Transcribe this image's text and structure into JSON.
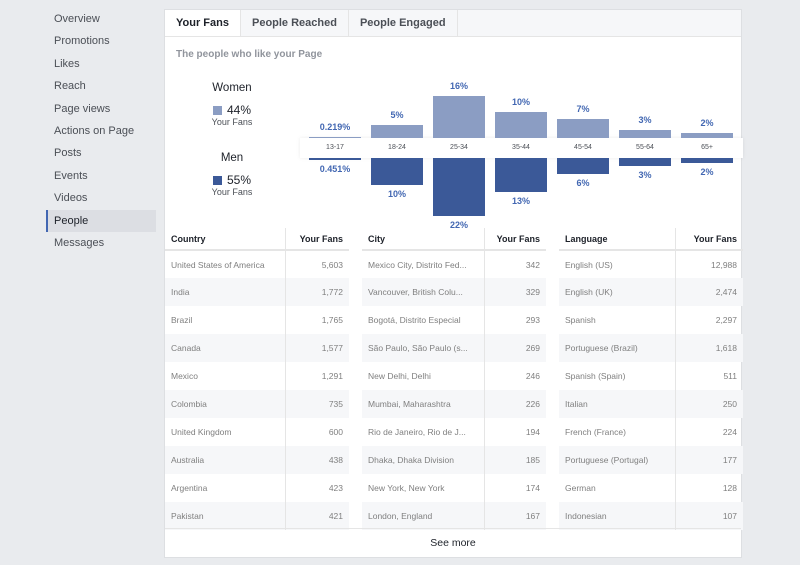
{
  "sidebar": {
    "items": [
      {
        "label": "Overview"
      },
      {
        "label": "Promotions"
      },
      {
        "label": "Likes"
      },
      {
        "label": "Reach"
      },
      {
        "label": "Page views"
      },
      {
        "label": "Actions on Page"
      },
      {
        "label": "Posts"
      },
      {
        "label": "Events"
      },
      {
        "label": "Videos"
      },
      {
        "label": "People",
        "active": true
      },
      {
        "label": "Messages"
      }
    ]
  },
  "tabs": [
    {
      "label": "Your Fans",
      "active": true
    },
    {
      "label": "People Reached"
    },
    {
      "label": "People Engaged"
    }
  ],
  "subtitle": "The people who like your Page",
  "legend": {
    "women": {
      "label": "Women",
      "pct": "44%",
      "sub": "Your Fans",
      "color": "#8b9dc3"
    },
    "men": {
      "label": "Men",
      "pct": "55%",
      "sub": "Your Fans",
      "color": "#3b5998"
    }
  },
  "chart_data": {
    "type": "bar",
    "categories": [
      "13-17",
      "18-24",
      "25-34",
      "35-44",
      "45-54",
      "55-64",
      "65+"
    ],
    "series": [
      {
        "name": "Women",
        "values": [
          0.219,
          5,
          16,
          10,
          7,
          3,
          2
        ],
        "labels": [
          "0.219%",
          "5%",
          "16%",
          "10%",
          "7%",
          "3%",
          "2%"
        ]
      },
      {
        "name": "Men",
        "values": [
          0.451,
          10,
          22,
          13,
          6,
          3,
          2
        ],
        "labels": [
          "0.451%",
          "10%",
          "22%",
          "13%",
          "6%",
          "3%",
          "2%"
        ]
      }
    ]
  },
  "tables": [
    {
      "headers": [
        "Country",
        "Your Fans"
      ],
      "rows": [
        [
          "United States of America",
          "5,603"
        ],
        [
          "India",
          "1,772"
        ],
        [
          "Brazil",
          "1,765"
        ],
        [
          "Canada",
          "1,577"
        ],
        [
          "Mexico",
          "1,291"
        ],
        [
          "Colombia",
          "735"
        ],
        [
          "United Kingdom",
          "600"
        ],
        [
          "Australia",
          "438"
        ],
        [
          "Argentina",
          "423"
        ],
        [
          "Pakistan",
          "421"
        ]
      ]
    },
    {
      "headers": [
        "City",
        "Your Fans"
      ],
      "rows": [
        [
          "Mexico City, Distrito Fed...",
          "342"
        ],
        [
          "Vancouver, British Colu...",
          "329"
        ],
        [
          "Bogotá, Distrito Especial",
          "293"
        ],
        [
          "São Paulo, São Paulo (s...",
          "269"
        ],
        [
          "New Delhi, Delhi",
          "246"
        ],
        [
          "Mumbai, Maharashtra",
          "226"
        ],
        [
          "Rio de Janeiro, Rio de J...",
          "194"
        ],
        [
          "Dhaka, Dhaka Division",
          "185"
        ],
        [
          "New York, New York",
          "174"
        ],
        [
          "London, England",
          "167"
        ]
      ]
    },
    {
      "headers": [
        "Language",
        "Your Fans"
      ],
      "rows": [
        [
          "English (US)",
          "12,988"
        ],
        [
          "English (UK)",
          "2,474"
        ],
        [
          "Spanish",
          "2,297"
        ],
        [
          "Portuguese (Brazil)",
          "1,618"
        ],
        [
          "Spanish (Spain)",
          "511"
        ],
        [
          "Italian",
          "250"
        ],
        [
          "French (France)",
          "224"
        ],
        [
          "Portuguese (Portugal)",
          "177"
        ],
        [
          "German",
          "128"
        ],
        [
          "Indonesian",
          "107"
        ]
      ]
    }
  ],
  "see_more": "See more"
}
